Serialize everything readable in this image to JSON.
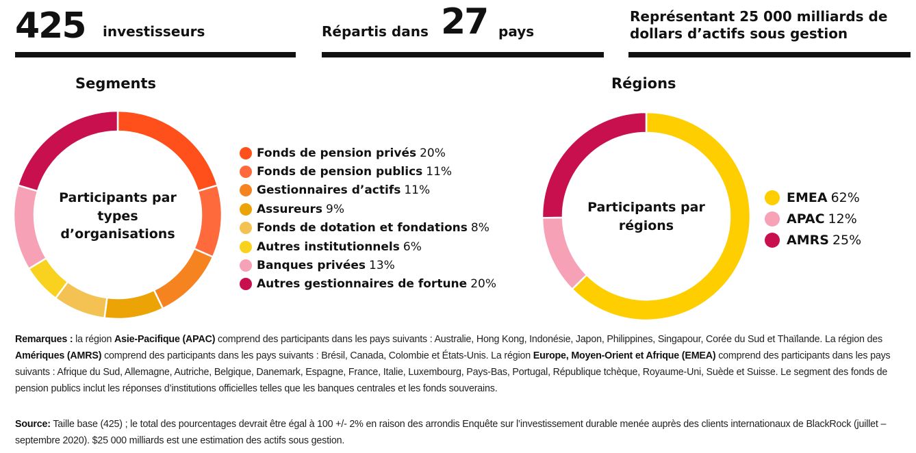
{
  "header": {
    "stat1": {
      "big": "425",
      "text": "investisseurs"
    },
    "stat2": {
      "pre": "Répartis dans",
      "big": "27",
      "post": "pays"
    },
    "stat3": {
      "line1": "Représentant 25 000 milliards de",
      "line2": "dollars d’actifs sous gestion"
    }
  },
  "chart_data": [
    {
      "type": "pie",
      "title": "Segments",
      "center_label": [
        "Participants par",
        "types",
        "d’organisations"
      ],
      "categories": [
        "Fonds de pension privés",
        "Fonds de pension publics",
        "Gestionnaires d’actifs",
        "Assureurs",
        "Fonds de dotation et fondations",
        "Autres institutionnels",
        "Banques privées",
        "Autres gestionnaires de fortune"
      ],
      "values": [
        20,
        11,
        11,
        9,
        8,
        6,
        13,
        20
      ],
      "value_labels": [
        "20%",
        "11%",
        "11%",
        "9%",
        "8%",
        "6%",
        "13%",
        "20%"
      ],
      "colors": [
        "#FF4F1A",
        "#FF6A3D",
        "#F58320",
        "#EBA305",
        "#F4C252",
        "#F9D21F",
        "#F7A1B6",
        "#C8104E"
      ],
      "legend_position": "right"
    },
    {
      "type": "pie",
      "title": "Régions",
      "center_label": [
        "Participants par",
        "régions"
      ],
      "categories": [
        "EMEA",
        "APAC",
        "AMRS"
      ],
      "values": [
        62,
        12,
        25
      ],
      "value_labels": [
        "62%",
        "12%",
        "25%"
      ],
      "colors": [
        "#FFCE00",
        "#F7A1B6",
        "#C8104E"
      ],
      "legend_position": "right"
    }
  ],
  "notes": {
    "remarks_label": "Remarques :",
    "remarks_parts": [
      " la région ",
      "Asie-Pacifique (APAC)",
      " comprend des participants dans les pays suivants : Australie, Hong Kong, Indonésie, Japon, Philippines, Singapour, Corée du Sud et Thaïlande. La région des ",
      "Amériques (AMRS)",
      " comprend des participants dans les pays suivants : Brésil, Canada, Colombie et États-Unis. La région ",
      "Europe, Moyen-Orient et Afrique (EMEA)",
      " comprend des participants dans les pays suivants : Afrique du Sud, Allemagne, Autriche, Belgique, Danemark, Espagne, France, Italie, Luxembourg, Pays-Bas, Portugal, République tchèque, Royaume-Uni, Suède et Suisse. Le segment des fonds de pension publics inclut les réponses d’institutions officielles telles que les banques centrales et les fonds souverains."
    ],
    "source_label": "Source:",
    "source_text": " Taille base (425) ; le total des pourcentages devrait être égal à 100 +/- 2% en raison des arrondis Enquête sur l’investissement durable menée auprès des clients internationaux de BlackRock (juillet – septembre 2020). $25 000 milliards est une estimation des actifs sous gestion."
  }
}
